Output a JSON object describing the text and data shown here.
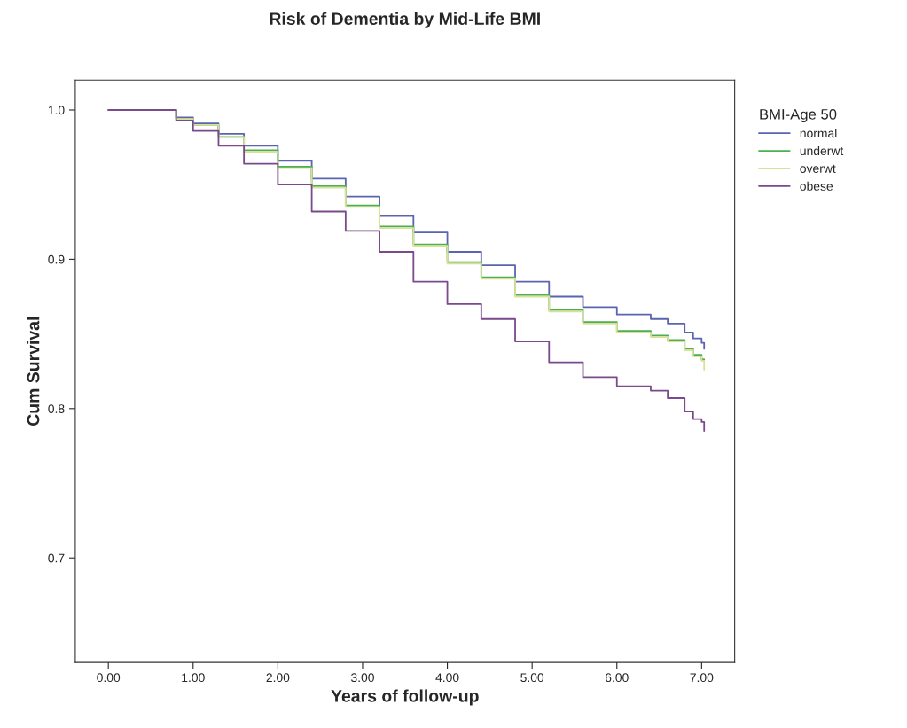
{
  "chart_data": {
    "type": "step",
    "title": "Risk of Dementia by Mid-Life BMI",
    "xlabel": "Years of follow-up",
    "ylabel": "Cum Survival",
    "legend_title": "BMI-Age 50",
    "legend": "right",
    "x": [
      0,
      0.5,
      0.8,
      1.0,
      1.3,
      1.6,
      2.0,
      2.4,
      2.8,
      3.2,
      3.6,
      4.0,
      4.4,
      4.8,
      5.2,
      5.6,
      6.0,
      6.4,
      6.6,
      6.8,
      6.9,
      7.0,
      7.03
    ],
    "series": [
      {
        "name": "normal",
        "color": "#5a64b0",
        "values": [
          1,
          1,
          0.995,
          0.991,
          0.984,
          0.976,
          0.966,
          0.954,
          0.942,
          0.929,
          0.918,
          0.905,
          0.896,
          0.885,
          0.875,
          0.868,
          0.863,
          0.86,
          0.857,
          0.851,
          0.847,
          0.844,
          0.84
        ]
      },
      {
        "name": "underwt",
        "color": "#4cb050",
        "values": [
          1,
          1,
          0.994,
          0.99,
          0.982,
          0.973,
          0.962,
          0.949,
          0.936,
          0.922,
          0.91,
          0.898,
          0.888,
          0.876,
          0.866,
          0.858,
          0.852,
          0.849,
          0.846,
          0.84,
          0.836,
          0.833,
          0.833
        ]
      },
      {
        "name": "overwt",
        "color": "#d8e09a",
        "values": [
          1,
          1,
          0.994,
          0.99,
          0.982,
          0.972,
          0.961,
          0.948,
          0.935,
          0.921,
          0.909,
          0.897,
          0.887,
          0.875,
          0.865,
          0.857,
          0.851,
          0.848,
          0.845,
          0.839,
          0.835,
          0.832,
          0.826
        ]
      },
      {
        "name": "obese",
        "color": "#7a4a8c",
        "values": [
          1,
          1,
          0.993,
          0.986,
          0.976,
          0.964,
          0.95,
          0.932,
          0.919,
          0.905,
          0.885,
          0.87,
          0.86,
          0.845,
          0.831,
          0.821,
          0.815,
          0.812,
          0.807,
          0.798,
          0.793,
          0.791,
          0.785
        ]
      }
    ],
    "xlim": [
      -0.39,
      7.39
    ],
    "ylim": [
      0.63,
      1.02
    ],
    "xticks": [
      {
        "value": 0,
        "label": "0.00"
      },
      {
        "value": 1,
        "label": "1.00"
      },
      {
        "value": 2,
        "label": "2.00"
      },
      {
        "value": 3,
        "label": "3.00"
      },
      {
        "value": 4,
        "label": "4.00"
      },
      {
        "value": 5,
        "label": "5.00"
      },
      {
        "value": 6,
        "label": "6.00"
      },
      {
        "value": 7,
        "label": "7.00"
      }
    ],
    "yticks": [
      {
        "value": 0.7,
        "label": "0.7"
      },
      {
        "value": 0.8,
        "label": "0.8"
      },
      {
        "value": 0.9,
        "label": "0.9"
      },
      {
        "value": 1.0,
        "label": "1.0"
      }
    ],
    "grid": false
  }
}
